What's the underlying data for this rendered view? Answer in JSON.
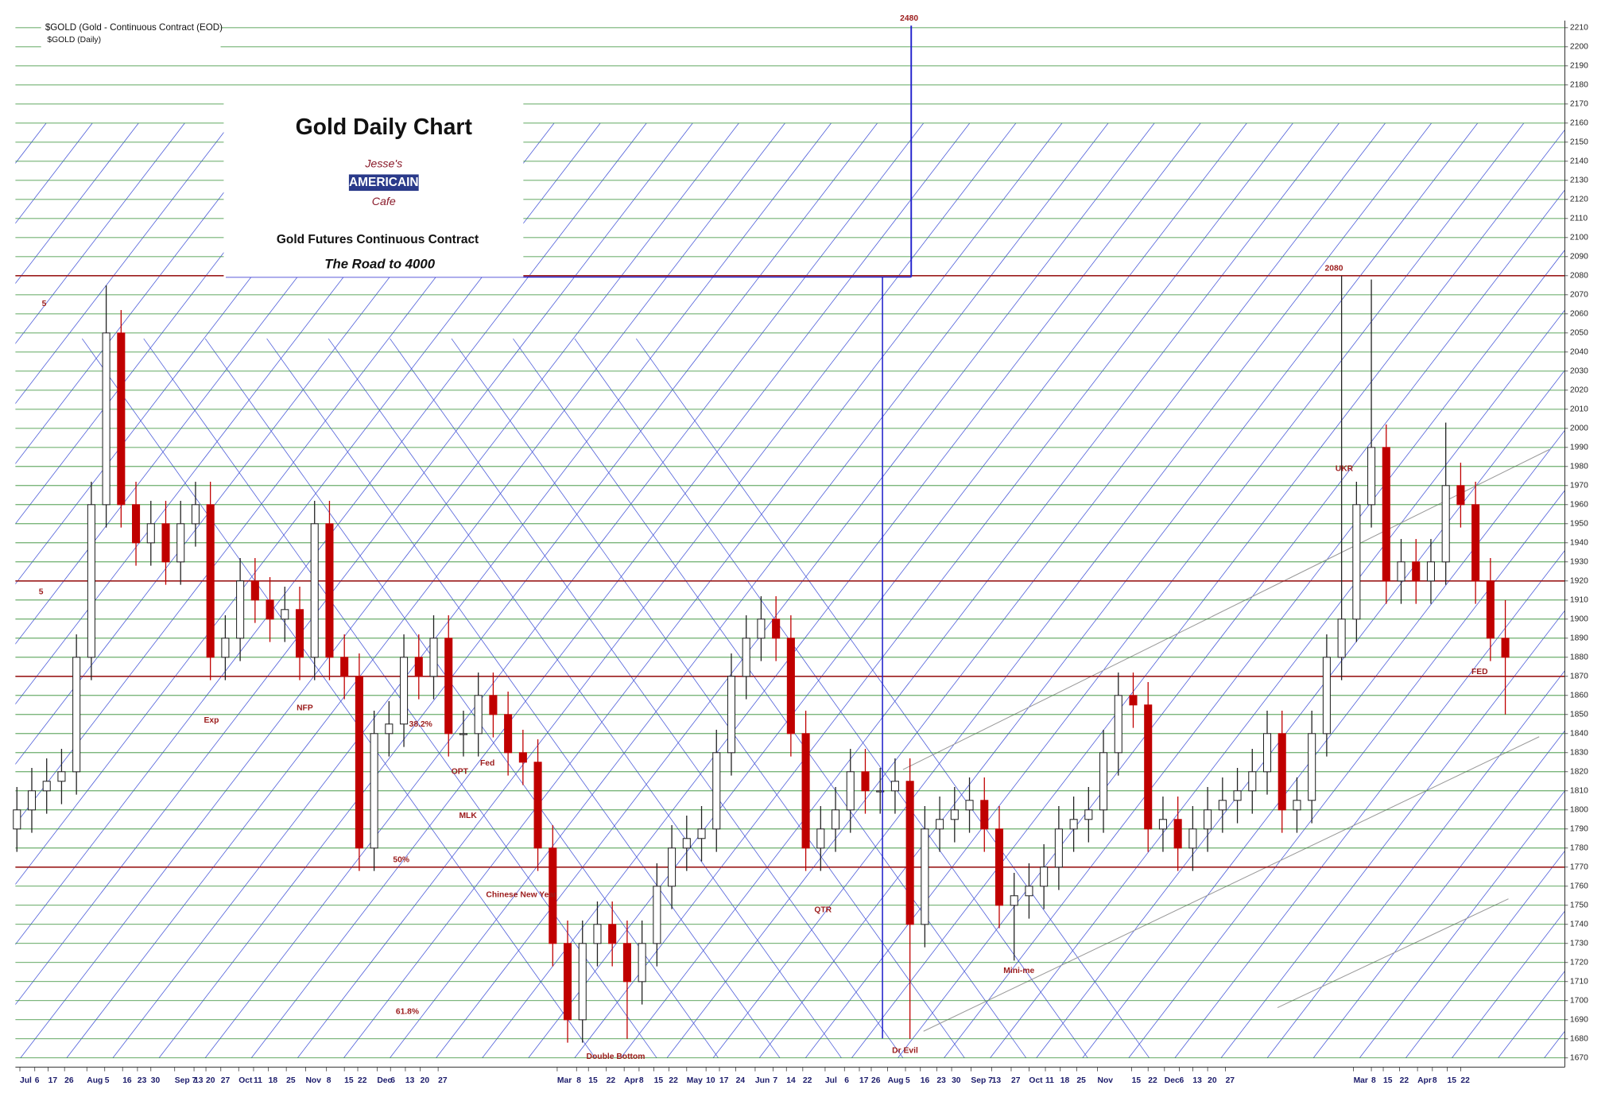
{
  "chart_data": {
    "type": "candlestick",
    "header": "$GOLD (Gold - Continuous Contract (EOD)",
    "subheader": "$GOLD (Daily)",
    "title": "Gold Daily Chart",
    "logo": [
      "Jesse's",
      "AMERICAIN",
      "Cafe"
    ],
    "subtitle": "Gold Futures Continuous Contract",
    "tagline": "The Road to 4000",
    "up_color": "#ffffff",
    "down_color": "#c00000",
    "grid": true,
    "grid_color": "#2e8b2e",
    "level_color": "#9b1b1b",
    "ylim": [
      1670,
      2210
    ],
    "yticks": [
      1670,
      1680,
      1690,
      1700,
      1710,
      1720,
      1730,
      1740,
      1750,
      1760,
      1770,
      1780,
      1790,
      1800,
      1810,
      1820,
      1830,
      1840,
      1850,
      1860,
      1870,
      1880,
      1890,
      1900,
      1910,
      1920,
      1930,
      1940,
      1950,
      1960,
      1970,
      1980,
      1990,
      2000,
      2010,
      2020,
      2030,
      2040,
      2050,
      2060,
      2070,
      2080,
      2090,
      2100,
      2110,
      2120,
      2130,
      2140,
      2150,
      2160,
      2170,
      2180,
      2190,
      2200,
      2210
    ],
    "xlim": [
      -0.1,
      104
    ],
    "xticks": [
      {
        "value": 0.2,
        "label": "Jul"
      },
      {
        "value": 1.2,
        "label": "6"
      },
      {
        "value": 2.1,
        "label": "17"
      },
      {
        "value": 3.2,
        "label": "26"
      },
      {
        "value": 4.7,
        "label": "Aug"
      },
      {
        "value": 5.9,
        "label": "5"
      },
      {
        "value": 7.1,
        "label": "16"
      },
      {
        "value": 8.1,
        "label": "23"
      },
      {
        "value": 9.0,
        "label": "30"
      },
      {
        "value": 10.6,
        "label": "Sep 7"
      },
      {
        "value": 11.9,
        "label": "13"
      },
      {
        "value": 12.7,
        "label": "20"
      },
      {
        "value": 13.7,
        "label": "27"
      },
      {
        "value": 14.9,
        "label": "Oct"
      },
      {
        "value": 15.9,
        "label": "11"
      },
      {
        "value": 16.9,
        "label": "18"
      },
      {
        "value": 18.1,
        "label": "25"
      },
      {
        "value": 19.4,
        "label": "Nov"
      },
      {
        "value": 20.8,
        "label": "8"
      },
      {
        "value": 22.0,
        "label": "15"
      },
      {
        "value": 22.9,
        "label": "22"
      },
      {
        "value": 24.2,
        "label": "Dec"
      },
      {
        "value": 25.1,
        "label": "6"
      },
      {
        "value": 26.1,
        "label": "13"
      },
      {
        "value": 27.1,
        "label": "20"
      },
      {
        "value": 28.3,
        "label": "27"
      },
      {
        "value": 36.3,
        "label": "Mar"
      },
      {
        "value": 37.6,
        "label": "8"
      },
      {
        "value": 38.4,
        "label": "15"
      },
      {
        "value": 39.6,
        "label": "22"
      },
      {
        "value": 40.8,
        "label": "Apr"
      },
      {
        "value": 41.8,
        "label": "8"
      },
      {
        "value": 42.8,
        "label": "15"
      },
      {
        "value": 43.8,
        "label": "22"
      },
      {
        "value": 45.0,
        "label": "May"
      },
      {
        "value": 46.3,
        "label": "10"
      },
      {
        "value": 47.2,
        "label": "17"
      },
      {
        "value": 48.3,
        "label": "24"
      },
      {
        "value": 49.6,
        "label": "Jun"
      },
      {
        "value": 50.8,
        "label": "7"
      },
      {
        "value": 51.7,
        "label": "14"
      },
      {
        "value": 52.8,
        "label": "22"
      },
      {
        "value": 54.3,
        "label": "Jul"
      },
      {
        "value": 55.6,
        "label": "6"
      },
      {
        "value": 56.6,
        "label": "17"
      },
      {
        "value": 57.4,
        "label": "26"
      },
      {
        "value": 58.5,
        "label": "Aug"
      },
      {
        "value": 59.7,
        "label": "5"
      },
      {
        "value": 60.7,
        "label": "16"
      },
      {
        "value": 61.8,
        "label": "23"
      },
      {
        "value": 62.8,
        "label": "30"
      },
      {
        "value": 64.1,
        "label": "Sep 7"
      },
      {
        "value": 65.5,
        "label": "13"
      },
      {
        "value": 66.8,
        "label": "27"
      },
      {
        "value": 68.0,
        "label": "Oct"
      },
      {
        "value": 69.1,
        "label": "11"
      },
      {
        "value": 70.1,
        "label": "18"
      },
      {
        "value": 71.2,
        "label": "25"
      },
      {
        "value": 72.6,
        "label": "Nov"
      },
      {
        "value": 74.9,
        "label": "15"
      },
      {
        "value": 76.0,
        "label": "22"
      },
      {
        "value": 77.1,
        "label": "Dec"
      },
      {
        "value": 78.1,
        "label": "6"
      },
      {
        "value": 79.0,
        "label": "13"
      },
      {
        "value": 80.0,
        "label": "20"
      },
      {
        "value": 81.2,
        "label": "27"
      },
      {
        "value": 89.8,
        "label": "Mar"
      },
      {
        "value": 91.0,
        "label": "8"
      },
      {
        "value": 91.8,
        "label": "15"
      },
      {
        "value": 92.9,
        "label": "22"
      },
      {
        "value": 94.1,
        "label": "Apr"
      },
      {
        "value": 95.1,
        "label": "8"
      },
      {
        "value": 96.1,
        "label": "15"
      },
      {
        "value": 97.0,
        "label": "22"
      }
    ],
    "open": [
      1790,
      1800,
      1810,
      1815,
      1820,
      1880,
      1960,
      2050,
      1960,
      1940,
      1950,
      1930,
      1950,
      1960,
      1880,
      1890,
      1920,
      1910,
      1900,
      1905,
      1880,
      1950,
      1880,
      1870,
      1780,
      1840,
      1845,
      1880,
      1870,
      1890,
      1840,
      1840,
      1860,
      1850,
      1830,
      1825,
      1780,
      1730,
      1690,
      1730,
      1740,
      1730,
      1710,
      1730,
      1760,
      1780,
      1785,
      1790,
      1830,
      1870,
      1890,
      1900,
      1890,
      1840,
      1780,
      1790,
      1800,
      1820,
      1810,
      1810,
      1815,
      1740,
      1790,
      1795,
      1800,
      1805,
      1790,
      1750,
      1755,
      1760,
      1770,
      1790,
      1795,
      1800,
      1830,
      1860,
      1855,
      1790,
      1795,
      1780,
      1790,
      1800,
      1805,
      1810,
      1820,
      1840,
      1800,
      1805,
      1840,
      1880,
      1900,
      1960,
      1990,
      1920,
      1930,
      1920,
      1930,
      1970,
      1960,
      1920,
      1890
    ],
    "high": [
      1812,
      1822,
      1827,
      1832,
      1892,
      1972,
      2075,
      2062,
      1972,
      1962,
      1962,
      1962,
      1972,
      1972,
      1902,
      1932,
      1932,
      1922,
      1917,
      1917,
      1962,
      1962,
      1892,
      1882,
      1852,
      1857,
      1892,
      1892,
      1902,
      1902,
      1852,
      1872,
      1872,
      1862,
      1842,
      1837,
      1792,
      1742,
      1742,
      1752,
      1752,
      1742,
      1742,
      1772,
      1792,
      1797,
      1802,
      1842,
      1882,
      1902,
      1912,
      1912,
      1902,
      1852,
      1802,
      1812,
      1832,
      1832,
      1822,
      1827,
      1827,
      1802,
      1807,
      1812,
      1817,
      1817,
      1802,
      1767,
      1772,
      1782,
      1802,
      1807,
      1812,
      1842,
      1872,
      1872,
      1867,
      1807,
      1807,
      1802,
      1812,
      1817,
      1822,
      1832,
      1852,
      1852,
      1817,
      1852,
      1892,
      2080,
      1972,
      2078,
      2002,
      1942,
      1942,
      1942,
      2003,
      1982,
      1972,
      1932,
      1910
    ],
    "low": [
      1778,
      1788,
      1798,
      1803,
      1808,
      1868,
      1948,
      1948,
      1928,
      1928,
      1918,
      1918,
      1938,
      1868,
      1868,
      1878,
      1898,
      1888,
      1888,
      1868,
      1868,
      1868,
      1858,
      1768,
      1768,
      1828,
      1833,
      1858,
      1858,
      1828,
      1828,
      1828,
      1838,
      1818,
      1813,
      1768,
      1718,
      1678,
      1678,
      1718,
      1718,
      1680,
      1698,
      1718,
      1748,
      1768,
      1773,
      1778,
      1818,
      1858,
      1878,
      1878,
      1828,
      1768,
      1768,
      1778,
      1788,
      1798,
      1798,
      1798,
      1680,
      1728,
      1778,
      1783,
      1788,
      1778,
      1738,
      1721,
      1743,
      1748,
      1758,
      1778,
      1783,
      1788,
      1818,
      1843,
      1778,
      1778,
      1768,
      1768,
      1778,
      1788,
      1793,
      1798,
      1808,
      1788,
      1788,
      1793,
      1828,
      1868,
      1888,
      1948,
      1908,
      1908,
      1908,
      1908,
      1918,
      1948,
      1908,
      1878,
      1850
    ],
    "close": [
      1800,
      1810,
      1815,
      1820,
      1880,
      1960,
      2050,
      1960,
      1940,
      1950,
      1930,
      1950,
      1960,
      1880,
      1890,
      1920,
      1910,
      1900,
      1905,
      1880,
      1950,
      1880,
      1870,
      1780,
      1840,
      1845,
      1880,
      1870,
      1890,
      1840,
      1840,
      1860,
      1850,
      1830,
      1825,
      1780,
      1730,
      1690,
      1730,
      1740,
      1730,
      1710,
      1730,
      1760,
      1780,
      1785,
      1790,
      1830,
      1870,
      1890,
      1900,
      1890,
      1840,
      1780,
      1790,
      1800,
      1820,
      1810,
      1810,
      1815,
      1740,
      1790,
      1795,
      1800,
      1805,
      1790,
      1750,
      1755,
      1760,
      1770,
      1790,
      1795,
      1800,
      1830,
      1860,
      1855,
      1790,
      1795,
      1780,
      1790,
      1800,
      1805,
      1810,
      1820,
      1840,
      1800,
      1805,
      1840,
      1880,
      1900,
      1960,
      1990,
      1920,
      1930,
      1920,
      1930,
      1970,
      1960,
      1920,
      1890,
      1880
    ],
    "levels": [
      2080,
      1920,
      1870,
      1770
    ],
    "annotations": [
      "38.2%",
      "50%",
      "61.8%",
      "Double Bottom",
      "Dr Evil",
      "2480",
      "UKR",
      "Mini-me",
      "Exp",
      "NFP",
      "Fed",
      "MLK",
      "Chinese New Year",
      "OPT",
      "QTR",
      "FED",
      "5",
      "5"
    ]
  }
}
